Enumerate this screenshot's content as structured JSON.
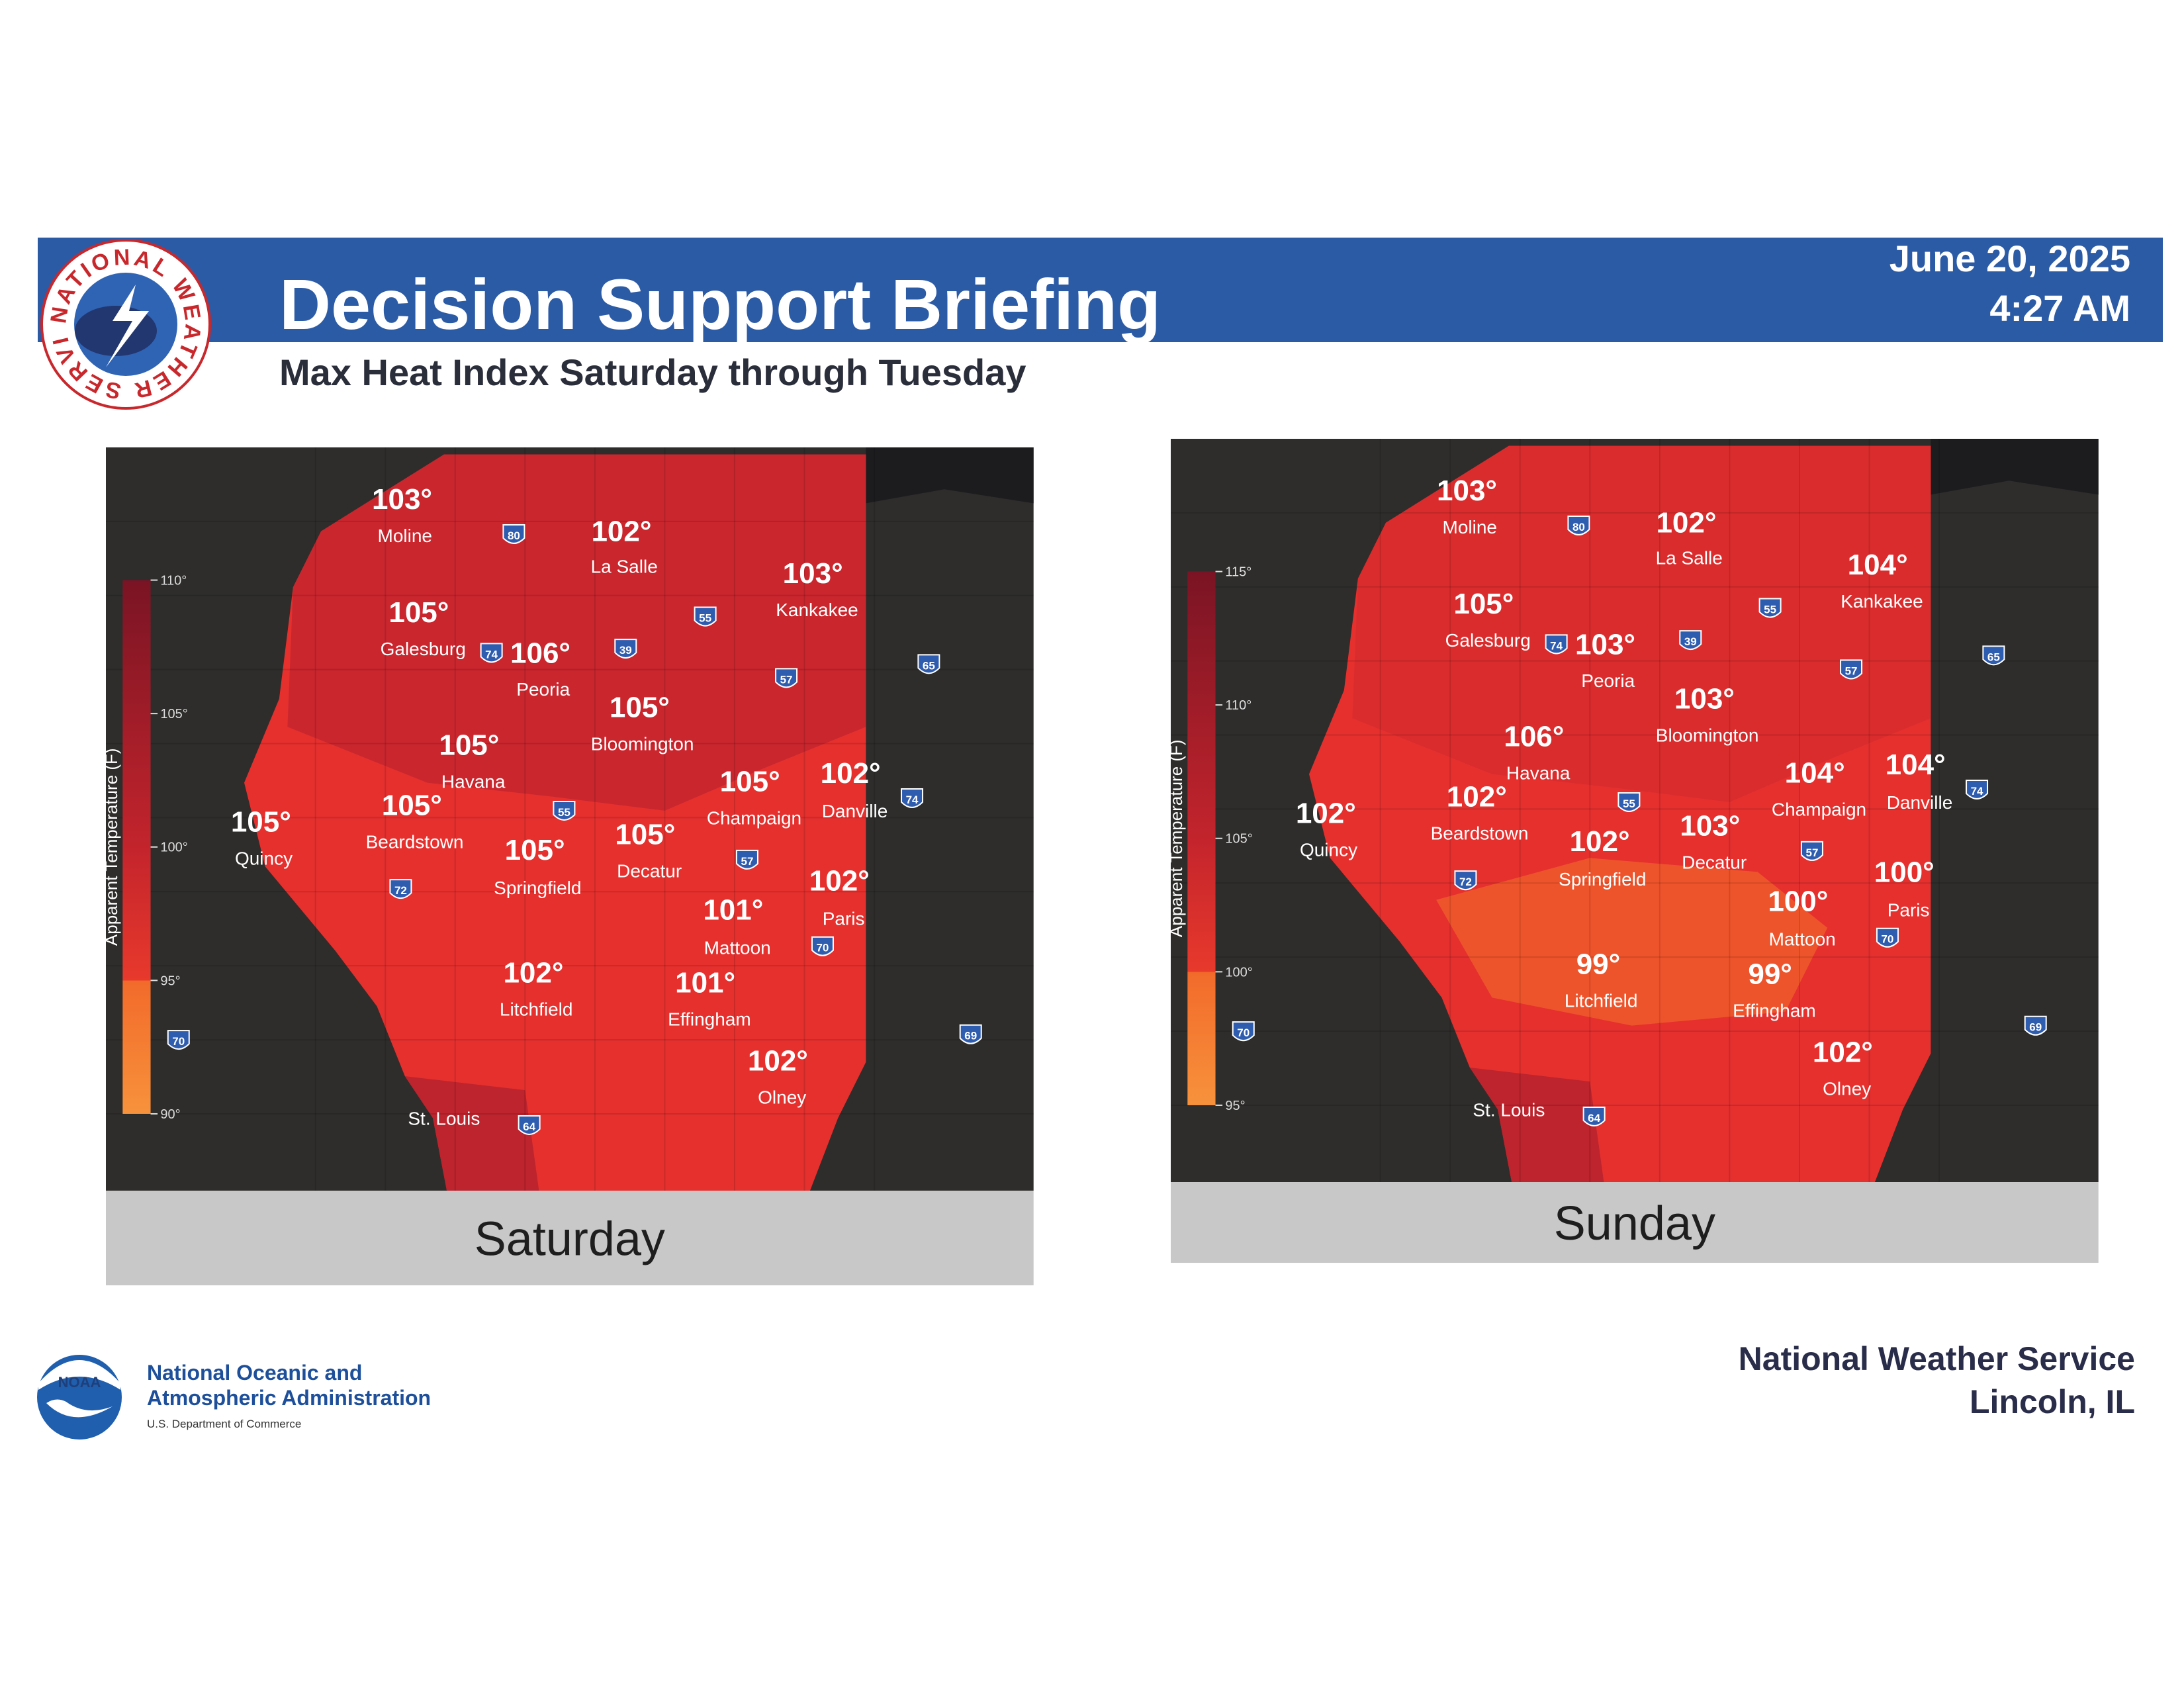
{
  "header": {
    "logo_text": "NATIONAL WEATHER SERVICE",
    "title": "Decision Support Briefing",
    "subtitle": "Max Heat Index Saturday through Tuesday",
    "date": "June 20, 2025",
    "time": "4:27 AM"
  },
  "maps": [
    {
      "day": "Saturday",
      "legend": {
        "title": "Apparent Temperature (F)",
        "ticks": [
          "110°",
          "105°",
          "100°",
          "95°",
          "90°"
        ]
      },
      "cities": [
        {
          "name": "Moline",
          "temp": "103°"
        },
        {
          "name": "La Salle",
          "temp": "102°"
        },
        {
          "name": "Kankakee",
          "temp": "103°"
        },
        {
          "name": "Galesburg",
          "temp": "105°"
        },
        {
          "name": "Peoria",
          "temp": "106°"
        },
        {
          "name": "Bloomington",
          "temp": "105°"
        },
        {
          "name": "Havana",
          "temp": "105°"
        },
        {
          "name": "Quincy",
          "temp": "105°"
        },
        {
          "name": "Beardstown",
          "temp": "105°"
        },
        {
          "name": "Springfield",
          "temp": "105°"
        },
        {
          "name": "Decatur",
          "temp": "105°"
        },
        {
          "name": "Champaign",
          "temp": "105°"
        },
        {
          "name": "Danville",
          "temp": "102°"
        },
        {
          "name": "Paris",
          "temp": "102°"
        },
        {
          "name": "Mattoon",
          "temp": "101°"
        },
        {
          "name": "Litchfield",
          "temp": "102°"
        },
        {
          "name": "Effingham",
          "temp": "101°"
        },
        {
          "name": "Olney",
          "temp": "102°"
        },
        {
          "name": "St. Louis"
        }
      ],
      "shields": [
        "80",
        "55",
        "39",
        "74",
        "57",
        "65",
        "74",
        "55",
        "57",
        "72",
        "70",
        "70",
        "69",
        "64"
      ]
    },
    {
      "day": "Sunday",
      "legend": {
        "title": "Apparent Temperature (F)",
        "ticks": [
          "115°",
          "110°",
          "105°",
          "100°",
          "95°"
        ]
      },
      "cities": [
        {
          "name": "Moline",
          "temp": "103°"
        },
        {
          "name": "La Salle",
          "temp": "102°"
        },
        {
          "name": "Kankakee",
          "temp": "104°"
        },
        {
          "name": "Galesburg",
          "temp": "105°"
        },
        {
          "name": "Peoria",
          "temp": "103°"
        },
        {
          "name": "Bloomington",
          "temp": "103°"
        },
        {
          "name": "Havana",
          "temp": "106°"
        },
        {
          "name": "Quincy",
          "temp": "102°"
        },
        {
          "name": "Beardstown",
          "temp": "102°"
        },
        {
          "name": "Springfield",
          "temp": "102°"
        },
        {
          "name": "Decatur",
          "temp": "103°"
        },
        {
          "name": "Champaign",
          "temp": "104°"
        },
        {
          "name": "Danville",
          "temp": "104°"
        },
        {
          "name": "Paris",
          "temp": "100°"
        },
        {
          "name": "Mattoon",
          "temp": "100°"
        },
        {
          "name": "Litchfield",
          "temp": "99°"
        },
        {
          "name": "Effingham",
          "temp": "99°"
        },
        {
          "name": "Olney",
          "temp": "102°"
        },
        {
          "name": "St. Louis"
        }
      ],
      "shields": [
        "80",
        "55",
        "39",
        "74",
        "57",
        "65",
        "74",
        "55",
        "57",
        "72",
        "70",
        "70",
        "69",
        "64"
      ]
    }
  ],
  "footer": {
    "noaa_logo": "NOAA",
    "agency_line1": "National Oceanic and",
    "agency_line2": "Atmospheric Administration",
    "department": "U.S. Department of Commerce",
    "office": "National Weather Service",
    "location": "Lincoln, IL"
  }
}
